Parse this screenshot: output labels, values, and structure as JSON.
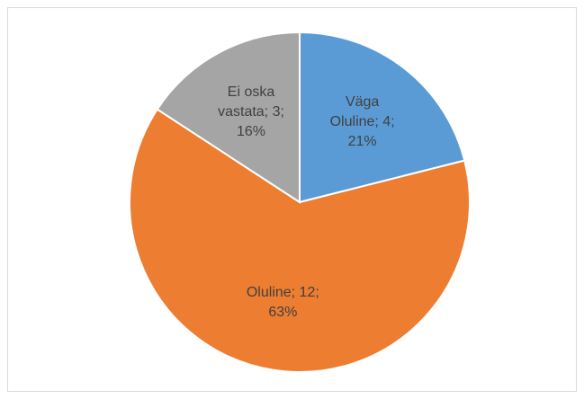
{
  "chart_data": {
    "type": "pie",
    "categories": [
      "Väga Oluline",
      "Oluline",
      "Ei oska vastata"
    ],
    "values": [
      4,
      12,
      3
    ],
    "value_labels": [
      "Väga Oluline; 4; 21%",
      "Oluline; 12; 63%",
      "Ei oska vastata; 3; 16%"
    ],
    "colors": [
      "#5b9bd5",
      "#ed7d31",
      "#a5a5a5"
    ]
  }
}
